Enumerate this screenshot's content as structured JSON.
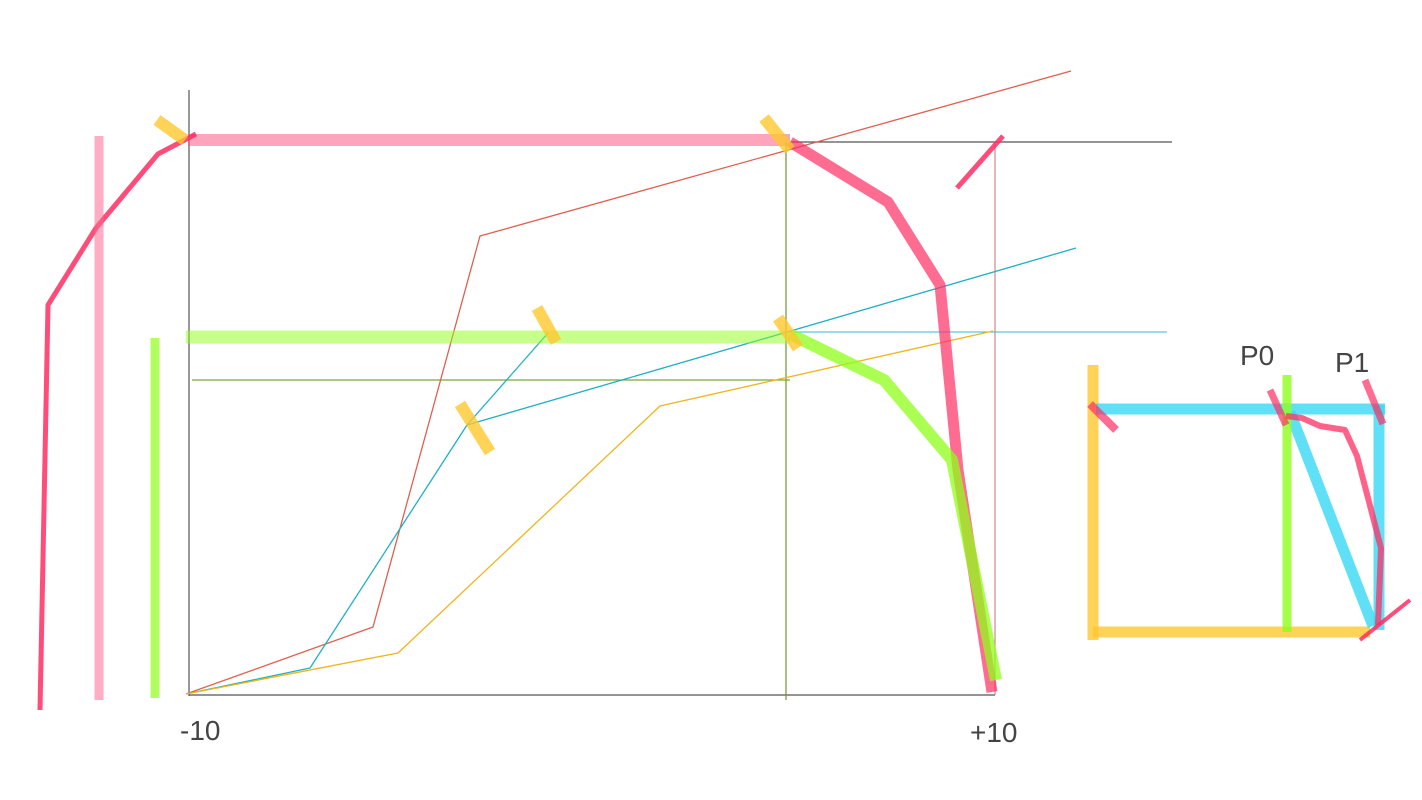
{
  "axis": {
    "min_label": "-10",
    "max_label": "+10"
  },
  "points": {
    "p0_label": "P0",
    "p1_label": "P1"
  },
  "colors": {
    "red": "#ff2d62",
    "pink": "#ff8aa6",
    "green": "#8fff1a",
    "yellow": "#ffc72e",
    "cyan": "#38d8f5",
    "thin_red": "#e0604f",
    "thin_teal": "#1fb0c4",
    "thin_orange": "#f0b51c",
    "thin_olive": "#7aa83a",
    "axis": "#555555"
  }
}
